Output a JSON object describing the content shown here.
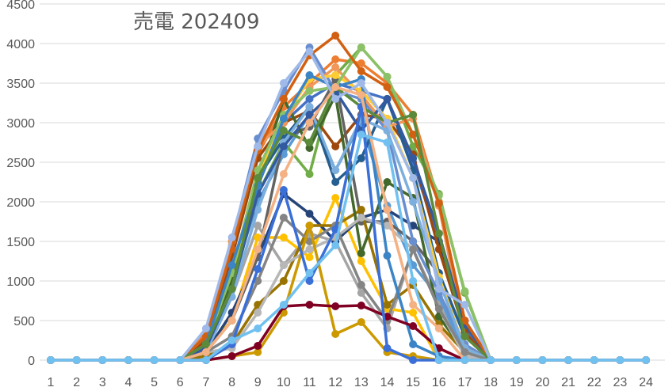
{
  "chart_data": {
    "type": "line",
    "title": "売電 202409",
    "xlabel": "",
    "ylabel": "",
    "ylim": [
      0,
      4500
    ],
    "xlim": [
      1,
      24
    ],
    "y_ticks": [
      0,
      500,
      1000,
      1500,
      2000,
      2500,
      3000,
      3500,
      4000,
      4500
    ],
    "categories": [
      1,
      2,
      3,
      4,
      5,
      6,
      7,
      8,
      9,
      10,
      11,
      12,
      13,
      14,
      15,
      16,
      17,
      18,
      19,
      20,
      21,
      22,
      23,
      24
    ],
    "grid": "horizontal",
    "legend": "none",
    "series": [
      {
        "color": "#4472c4",
        "values": [
          0,
          0,
          0,
          0,
          0,
          0,
          300,
          1200,
          2200,
          3000,
          3300,
          3500,
          3400,
          3300,
          2500,
          1500,
          400,
          0,
          0,
          0,
          0,
          0,
          0,
          0
        ]
      },
      {
        "color": "#ed7d31",
        "values": [
          0,
          0,
          0,
          0,
          0,
          0,
          350,
          1450,
          2600,
          3200,
          3500,
          3800,
          3750,
          3500,
          3100,
          2000,
          500,
          0,
          0,
          0,
          0,
          0,
          0,
          0
        ]
      },
      {
        "color": "#a5a5a5",
        "values": [
          0,
          0,
          0,
          0,
          0,
          0,
          200,
          800,
          1700,
          1200,
          1600,
          1500,
          850,
          400,
          1400,
          700,
          100,
          0,
          0,
          0,
          0,
          0,
          0,
          0
        ]
      },
      {
        "color": "#ffc000",
        "values": [
          0,
          0,
          0,
          0,
          0,
          0,
          150,
          500,
          1550,
          1550,
          1300,
          2050,
          1250,
          650,
          600,
          0,
          0,
          0,
          0,
          0,
          0,
          0,
          0,
          0
        ]
      },
      {
        "color": "#5b9bd5",
        "values": [
          0,
          0,
          0,
          0,
          0,
          0,
          250,
          1000,
          2000,
          2600,
          3100,
          2400,
          3000,
          1950,
          1200,
          800,
          100,
          0,
          0,
          0,
          0,
          0,
          0,
          0
        ]
      },
      {
        "color": "#70ad47",
        "values": [
          0,
          0,
          0,
          0,
          0,
          0,
          200,
          900,
          2100,
          2750,
          2350,
          3600,
          3950,
          3580,
          2700,
          2100,
          850,
          0,
          0,
          0,
          0,
          0,
          0,
          0
        ]
      },
      {
        "color": "#264478",
        "values": [
          0,
          0,
          0,
          0,
          0,
          0,
          100,
          600,
          1300,
          2100,
          1850,
          1500,
          1800,
          1900,
          1700,
          1500,
          500,
          0,
          0,
          0,
          0,
          0,
          0,
          0
        ]
      },
      {
        "color": "#9e480e",
        "values": [
          0,
          0,
          0,
          0,
          0,
          0,
          250,
          1300,
          2550,
          3000,
          3150,
          2700,
          3100,
          3050,
          2600,
          1400,
          350,
          0,
          0,
          0,
          0,
          0,
          0,
          0
        ]
      },
      {
        "color": "#636363",
        "values": [
          0,
          0,
          0,
          0,
          0,
          0,
          100,
          500,
          1300,
          2800,
          2950,
          3550,
          1750,
          1750,
          1500,
          1100,
          300,
          0,
          0,
          0,
          0,
          0,
          0,
          0
        ]
      },
      {
        "color": "#997300",
        "values": [
          0,
          0,
          0,
          0,
          0,
          0,
          50,
          200,
          700,
          1000,
          1700,
          1700,
          1900,
          700,
          950,
          450,
          100,
          0,
          0,
          0,
          0,
          0,
          0,
          0
        ]
      },
      {
        "color": "#255e91",
        "values": [
          0,
          0,
          0,
          0,
          0,
          0,
          200,
          1100,
          2300,
          2800,
          3200,
          2250,
          2550,
          3300,
          2400,
          1100,
          300,
          0,
          0,
          0,
          0,
          0,
          0,
          0
        ]
      },
      {
        "color": "#43682b",
        "values": [
          0,
          0,
          0,
          0,
          0,
          0,
          200,
          1000,
          2250,
          3300,
          2680,
          3350,
          1350,
          2250,
          2050,
          550,
          100,
          0,
          0,
          0,
          0,
          0,
          0,
          0
        ]
      },
      {
        "color": "#698ed0",
        "values": [
          0,
          0,
          0,
          0,
          0,
          0,
          300,
          1500,
          2800,
          3400,
          3950,
          3400,
          3300,
          2900,
          1500,
          850,
          200,
          0,
          0,
          0,
          0,
          0,
          0,
          0
        ]
      },
      {
        "color": "#f1975a",
        "values": [
          0,
          0,
          0,
          0,
          0,
          0,
          300,
          1500,
          2700,
          3000,
          3450,
          3700,
          3350,
          2950,
          3050,
          1950,
          300,
          0,
          0,
          0,
          0,
          0,
          0,
          0
        ]
      },
      {
        "color": "#b7b7b7",
        "values": [
          0,
          0,
          0,
          0,
          0,
          0,
          100,
          150,
          600,
          1200,
          1400,
          1550,
          1800,
          1700,
          1400,
          650,
          50,
          0,
          0,
          0,
          0,
          0,
          0,
          0
        ]
      },
      {
        "color": "#ffcd33",
        "values": [
          0,
          0,
          0,
          0,
          0,
          0,
          200,
          1100,
          2300,
          3050,
          3550,
          3600,
          3400,
          3050,
          2300,
          1050,
          150,
          0,
          0,
          0,
          0,
          0,
          0,
          0
        ]
      },
      {
        "color": "#7cafdd",
        "values": [
          0,
          0,
          0,
          0,
          0,
          0,
          100,
          800,
          1900,
          2750,
          3200,
          2400,
          3050,
          2900,
          2000,
          1000,
          150,
          0,
          0,
          0,
          0,
          0,
          0,
          0
        ]
      },
      {
        "color": "#8cc168",
        "values": [
          0,
          0,
          0,
          0,
          0,
          0,
          200,
          1100,
          2400,
          3100,
          3400,
          3450,
          3950,
          3580,
          2850,
          2080,
          870,
          0,
          0,
          0,
          0,
          0,
          0,
          0
        ]
      },
      {
        "color": "#335aa1",
        "values": [
          0,
          0,
          0,
          0,
          0,
          0,
          150,
          900,
          2100,
          2700,
          3100,
          3400,
          2900,
          3300,
          2550,
          1600,
          450,
          0,
          0,
          0,
          0,
          0,
          0,
          0
        ]
      },
      {
        "color": "#d26012",
        "values": [
          0,
          0,
          0,
          0,
          0,
          0,
          300,
          1400,
          2650,
          3300,
          3850,
          4100,
          3650,
          3450,
          2850,
          1980,
          500,
          0,
          0,
          0,
          0,
          0,
          0,
          0
        ]
      },
      {
        "color": "#848484",
        "values": [
          0,
          0,
          0,
          0,
          0,
          0,
          100,
          300,
          1000,
          1800,
          1500,
          1700,
          950,
          500,
          1400,
          650,
          100,
          0,
          0,
          0,
          0,
          0,
          0,
          0
        ]
      },
      {
        "color": "#cc9a00",
        "values": [
          0,
          0,
          0,
          0,
          0,
          0,
          0,
          50,
          100,
          600,
          1700,
          330,
          480,
          100,
          50,
          0,
          0,
          0,
          0,
          0,
          0,
          0,
          0,
          0
        ]
      },
      {
        "color": "#3b84c6",
        "values": [
          0,
          0,
          0,
          0,
          0,
          0,
          200,
          1200,
          2200,
          3050,
          3600,
          3450,
          3550,
          1320,
          200,
          50,
          0,
          0,
          0,
          0,
          0,
          0,
          0,
          0
        ]
      },
      {
        "color": "#5a8a3a",
        "values": [
          0,
          0,
          0,
          0,
          0,
          0,
          200,
          900,
          2300,
          2900,
          2750,
          3450,
          3200,
          3000,
          3100,
          1600,
          300,
          0,
          0,
          0,
          0,
          0,
          0,
          0
        ]
      },
      {
        "color": "#7f0023",
        "values": [
          0,
          0,
          0,
          0,
          0,
          0,
          0,
          50,
          180,
          680,
          700,
          680,
          690,
          550,
          430,
          150,
          0,
          0,
          0,
          0,
          0,
          0,
          0,
          0
        ]
      },
      {
        "color": "#9fb9e8",
        "values": [
          0,
          0,
          0,
          0,
          0,
          0,
          400,
          1550,
          2700,
          3500,
          3900,
          3300,
          3500,
          3000,
          2300,
          900,
          700,
          0,
          0,
          0,
          0,
          0,
          0,
          0
        ]
      },
      {
        "color": "#3a6fd8",
        "values": [
          0,
          0,
          0,
          0,
          0,
          0,
          0,
          200,
          1150,
          2150,
          1000,
          1650,
          3200,
          150,
          0,
          0,
          0,
          0,
          0,
          0,
          0,
          0,
          0,
          0
        ]
      },
      {
        "color": "#f4b183",
        "values": [
          0,
          0,
          0,
          0,
          0,
          0,
          100,
          500,
          1400,
          2350,
          3000,
          3450,
          3350,
          1900,
          700,
          400,
          0,
          0,
          0,
          0,
          0,
          0,
          0,
          0
        ]
      },
      {
        "color": "#70c0f0",
        "values": [
          0,
          0,
          0,
          0,
          0,
          0,
          0,
          250,
          400,
          700,
          1100,
          1450,
          2850,
          2750,
          1000,
          0,
          0,
          0,
          0,
          0,
          0,
          0,
          0,
          0
        ]
      }
    ]
  }
}
